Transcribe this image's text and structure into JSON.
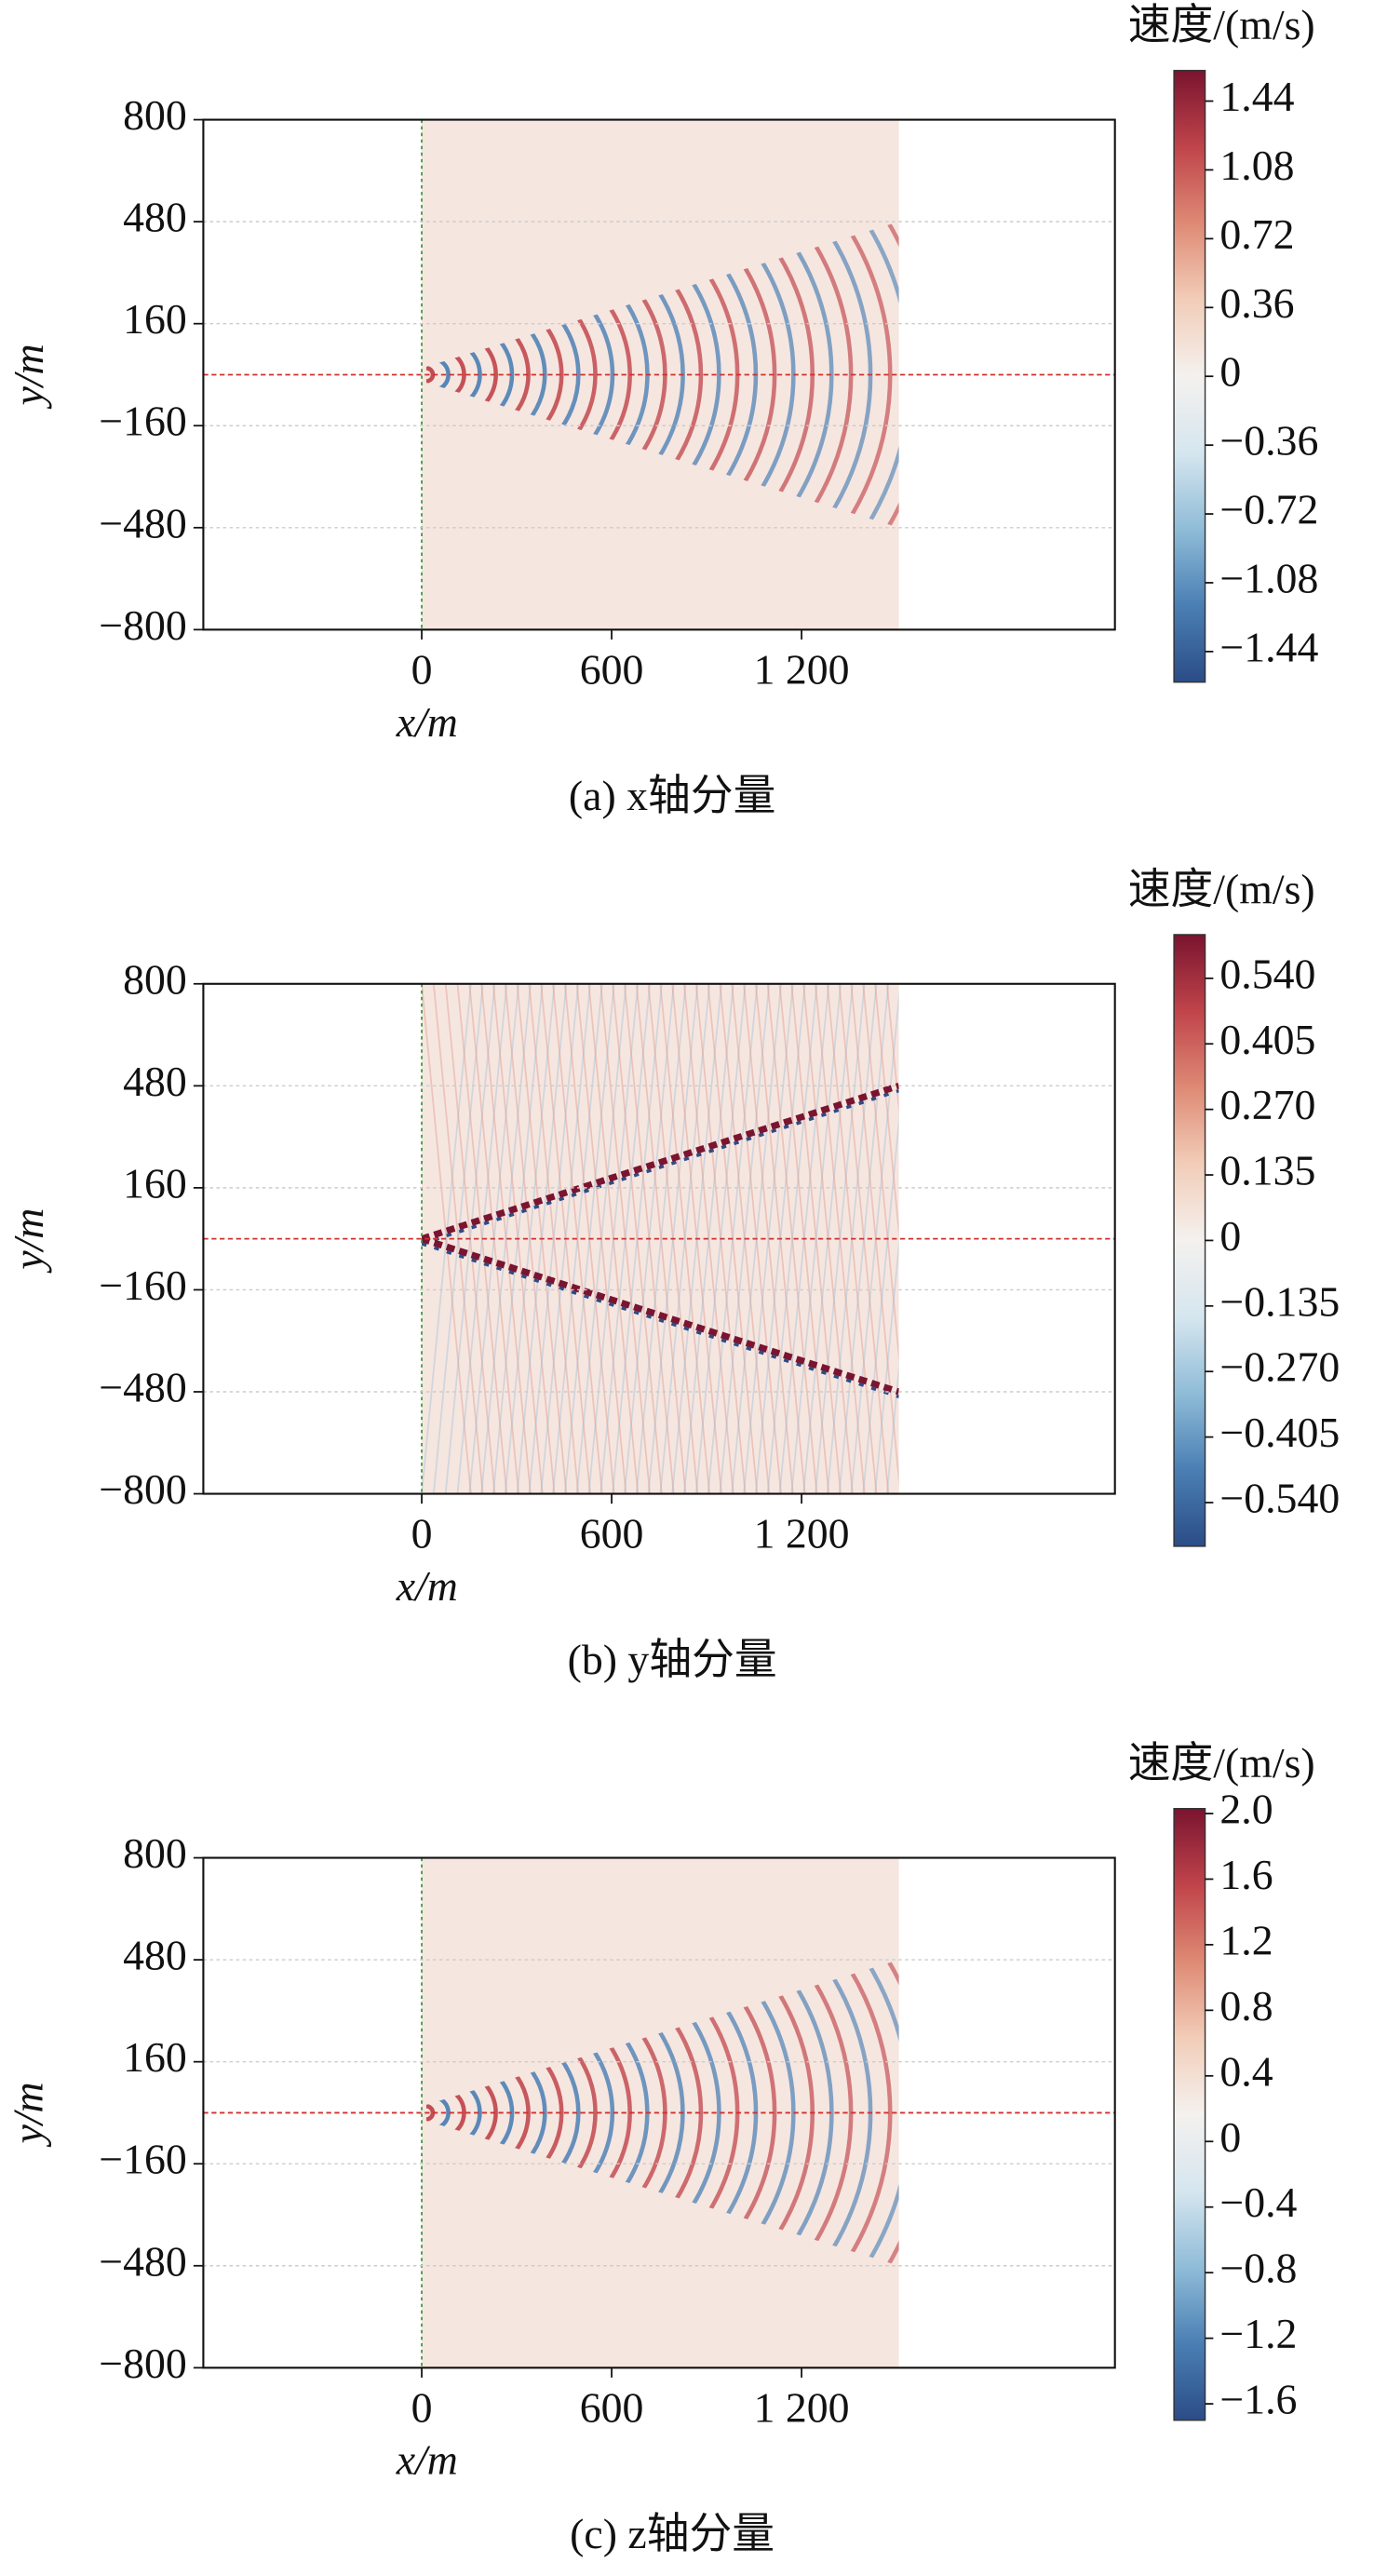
{
  "chart_data": [
    {
      "type": "heatmap",
      "title": "(a) x轴分量",
      "x_label": "x/m",
      "y_label": "y/m",
      "colorbar_label": "速度/(m/s)",
      "xlim": [
        -690,
        2190
      ],
      "xticks": [
        0,
        600,
        {
          "value": 1200,
          "label": "1 200"
        }
      ],
      "ylim": [
        -800,
        800
      ],
      "yticks": [
        {
          "value": -800,
          "label": "−800"
        },
        {
          "value": -480,
          "label": "−480"
        },
        {
          "value": -160,
          "label": "−160"
        },
        160,
        480,
        800
      ],
      "clim": [
        -1.6,
        1.6
      ],
      "cticks": [
        {
          "value": -1.44,
          "label": "−1.44"
        },
        {
          "value": -1.08,
          "label": "−1.08"
        },
        {
          "value": -0.72,
          "label": "−0.72"
        },
        {
          "value": -0.36,
          "label": "−0.36"
        },
        0,
        0.36,
        0.72,
        1.08,
        1.44
      ],
      "colormap": [
        "#2b4c87",
        "#4a7fb4",
        "#8fbcd8",
        "#d6e6ef",
        "#f4f1ef",
        "#f2cdb8",
        "#de8a75",
        "#c0444a",
        "#7a1430"
      ],
      "grid": true,
      "pattern": "cone"
    },
    {
      "type": "heatmap",
      "title": "(b) y轴分量",
      "x_label": "x/m",
      "y_label": "y/m",
      "colorbar_label": "速度/(m/s)",
      "xlim": [
        -690,
        2190
      ],
      "xticks": [
        0,
        600,
        {
          "value": 1200,
          "label": "1 200"
        }
      ],
      "ylim": [
        -800,
        800
      ],
      "yticks": [
        {
          "value": -800,
          "label": "−800"
        },
        {
          "value": -480,
          "label": "−480"
        },
        {
          "value": -160,
          "label": "−160"
        },
        160,
        480,
        800
      ],
      "clim": [
        -0.63,
        0.63
      ],
      "cticks": [
        {
          "value": -0.54,
          "label": "−0.540"
        },
        {
          "value": -0.405,
          "label": "−0.405"
        },
        {
          "value": -0.27,
          "label": "−0.270"
        },
        {
          "value": -0.135,
          "label": "−0.135"
        },
        0,
        0.135,
        {
          "value": 0.27,
          "label": "0.270"
        },
        0.405,
        {
          "value": 0.54,
          "label": "0.540"
        }
      ],
      "colormap": [
        "#2b4c87",
        "#4a7fb4",
        "#8fbcd8",
        "#d6e6ef",
        "#f4f1ef",
        "#f2cdb8",
        "#de8a75",
        "#c0444a",
        "#7a1430"
      ],
      "grid": true,
      "pattern": "edges"
    },
    {
      "type": "heatmap",
      "title": "(c) z轴分量",
      "x_label": "x/m",
      "y_label": "y/m",
      "colorbar_label": "速度/(m/s)",
      "xlim": [
        -690,
        2190
      ],
      "xticks": [
        0,
        600,
        {
          "value": 1200,
          "label": "1 200"
        }
      ],
      "ylim": [
        -800,
        800
      ],
      "yticks": [
        {
          "value": -800,
          "label": "−800"
        },
        {
          "value": -480,
          "label": "−480"
        },
        {
          "value": -160,
          "label": "−160"
        },
        160,
        480,
        800
      ],
      "clim": [
        -1.7,
        2.03
      ],
      "cticks": [
        {
          "value": -1.6,
          "label": "−1.6"
        },
        {
          "value": -1.2,
          "label": "−1.2"
        },
        {
          "value": -0.8,
          "label": "−0.8"
        },
        {
          "value": -0.4,
          "label": "−0.4"
        },
        0,
        0.4,
        0.8,
        1.2,
        1.6,
        {
          "value": 2,
          "label": "2.0"
        }
      ],
      "colormap": [
        "#2b4c87",
        "#4a7fb4",
        "#8fbcd8",
        "#d6e6ef",
        "#f4f1ef",
        "#f2cdb8",
        "#de8a75",
        "#c0444a",
        "#7a1430"
      ],
      "grid": true,
      "pattern": "cone"
    }
  ]
}
